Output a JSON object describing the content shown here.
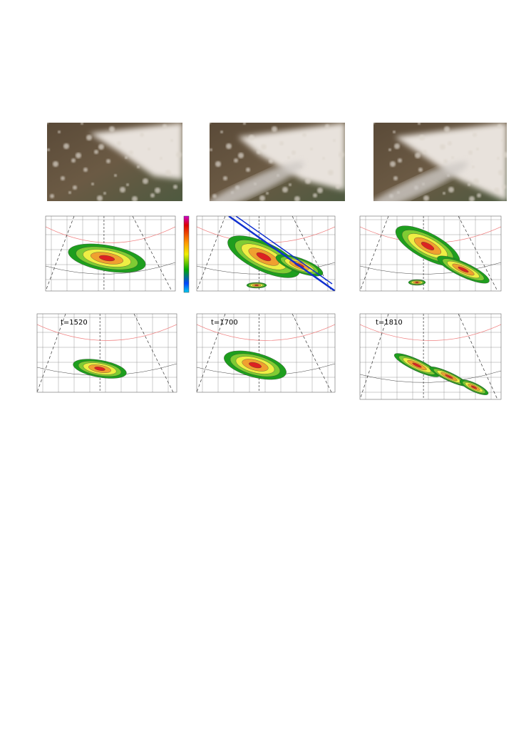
{
  "panels": [
    {
      "label": "t=1520"
    },
    {
      "label": "t=1700"
    },
    {
      "label": "t=1810"
    }
  ]
}
